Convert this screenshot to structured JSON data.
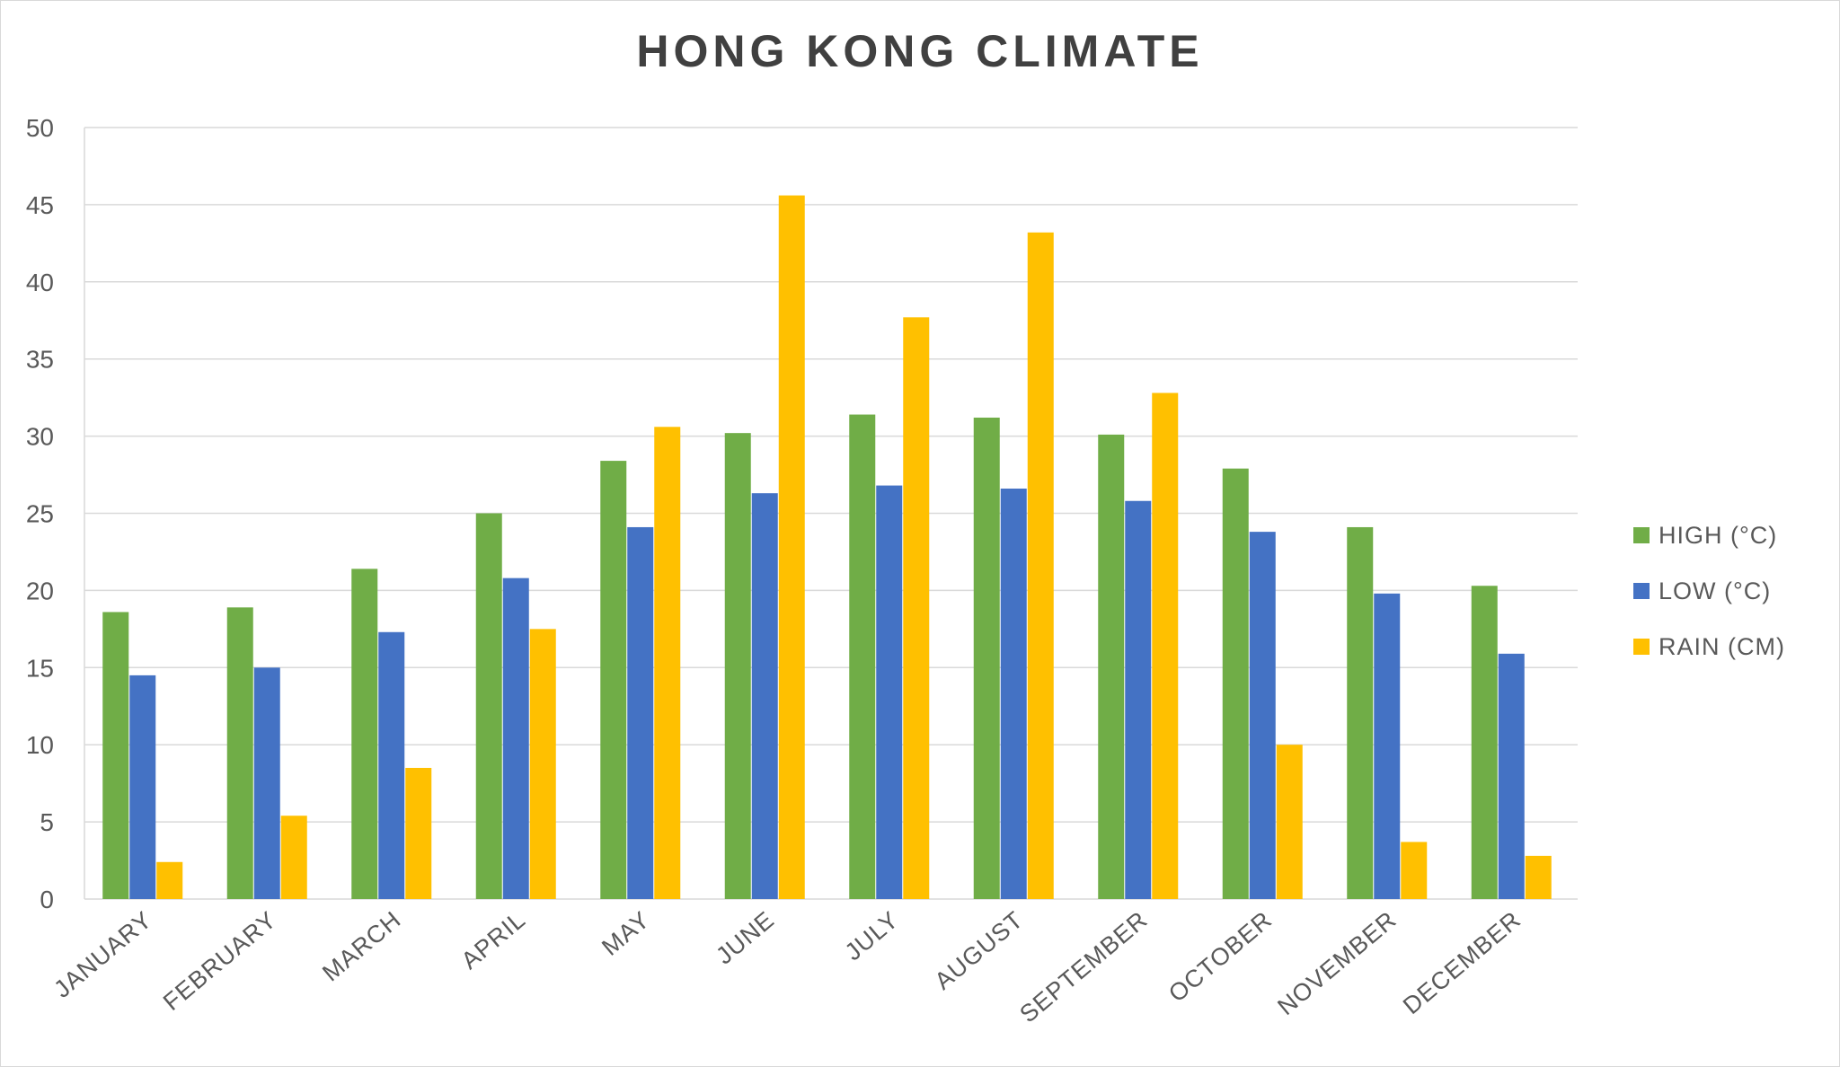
{
  "chart_data": {
    "type": "bar",
    "title": "HONG KONG CLIMATE",
    "xlabel": "",
    "ylabel": "",
    "ylim": [
      0,
      50
    ],
    "yticks": [
      0,
      5,
      10,
      15,
      20,
      25,
      30,
      35,
      40,
      45,
      50
    ],
    "grid": true,
    "legend_position": "right",
    "categories": [
      "JANUARY",
      "FEBRUARY",
      "MARCH",
      "APRIL",
      "MAY",
      "JUNE",
      "JULY",
      "AUGUST",
      "SEPTEMBER",
      "OCTOBER",
      "NOVEMBER",
      "DECEMBER"
    ],
    "series": [
      {
        "name": "HIGH (°C)",
        "color": "#70AD47",
        "values": [
          18.6,
          18.9,
          21.4,
          25.0,
          28.4,
          30.2,
          31.4,
          31.2,
          30.1,
          27.9,
          24.1,
          20.3
        ]
      },
      {
        "name": "LOW (°C)",
        "color": "#4472C4",
        "values": [
          14.5,
          15.0,
          17.3,
          20.8,
          24.1,
          26.3,
          26.8,
          26.6,
          25.8,
          23.8,
          19.8,
          15.9
        ]
      },
      {
        "name": "RAIN (CM)",
        "color": "#FFC000",
        "values": [
          2.4,
          5.4,
          8.5,
          17.5,
          30.6,
          45.6,
          37.7,
          43.2,
          32.8,
          10.0,
          3.7,
          2.8
        ]
      }
    ]
  }
}
